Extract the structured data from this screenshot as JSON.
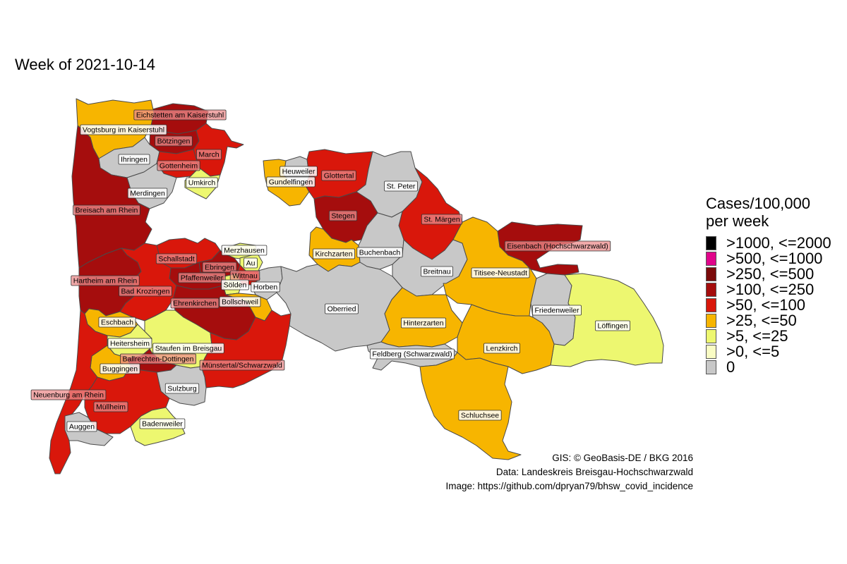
{
  "title": "Week of 2021-10-14",
  "legend": {
    "title_line1": "Cases/100,000",
    "title_line2": "per week",
    "items": [
      {
        "label": ">1000, <=2000",
        "color": "#000000"
      },
      {
        "label": ">500, <=1000",
        "color": "#e0058a"
      },
      {
        "label": ">250, <=500",
        "color": "#7a0a0a"
      },
      {
        "label": ">100, <=250",
        "color": "#a50d0d"
      },
      {
        "label": ">50, <=100",
        "color": "#d9170b"
      },
      {
        "label": ">25, <=50",
        "color": "#f7b500"
      },
      {
        "label": ">5, <=25",
        "color": "#edf770"
      },
      {
        "label": ">0, <=5",
        "color": "#f9fcc4"
      },
      {
        "label": "0",
        "color": "#c8c8c8"
      }
    ]
  },
  "credits": {
    "gis": "GIS: © GeoBasis-DE / BKG 2016",
    "data": "Data: Landeskreis Breisgau-Hochschwarzwald",
    "image": "Image: https://github.com/dpryan79/bhsw_covid_incidence"
  },
  "municipalities": [
    {
      "name": "Eichstetten am Kaiserstuhl",
      "class": ">100, <=250"
    },
    {
      "name": "Vogtsburg im Kaiserstuhl",
      "class": ">25, <=50"
    },
    {
      "name": "Bötzingen",
      "class": ">100, <=250"
    },
    {
      "name": "Ihringen",
      "class": "0"
    },
    {
      "name": "March",
      "class": ">50, <=100"
    },
    {
      "name": "Gottenheim",
      "class": ">50, <=100"
    },
    {
      "name": "Umkirch",
      "class": ">5, <=25"
    },
    {
      "name": "Merdingen",
      "class": "0"
    },
    {
      "name": "Breisach am Rhein",
      "class": ">100, <=250"
    },
    {
      "name": "Heuweiler",
      "class": "0"
    },
    {
      "name": "Gundelfingen",
      "class": ">25, <=50"
    },
    {
      "name": "Glottertal",
      "class": ">50, <=100"
    },
    {
      "name": "St. Peter",
      "class": "0"
    },
    {
      "name": "Stegen",
      "class": ">100, <=250"
    },
    {
      "name": "St. Märgen",
      "class": ">50, <=100"
    },
    {
      "name": "Eisenbach (Hochschwarzwald)",
      "class": ">100, <=250"
    },
    {
      "name": "Merzhausen",
      "class": ">5, <=25"
    },
    {
      "name": "Au",
      "class": ">5, <=25"
    },
    {
      "name": "Schallstadt",
      "class": ">50, <=100"
    },
    {
      "name": "Ebringen",
      "class": ">100, <=250"
    },
    {
      "name": "Wittnau",
      "class": ">50, <=100"
    },
    {
      "name": "Pfaffenweiler",
      "class": ">100, <=250"
    },
    {
      "name": "Sölden",
      "class": ">5, <=25"
    },
    {
      "name": "Horben",
      "class": "0"
    },
    {
      "name": "Kirchzarten",
      "class": ">25, <=50"
    },
    {
      "name": "Buchenbach",
      "class": "0"
    },
    {
      "name": "Breitnau",
      "class": "0"
    },
    {
      "name": "Titisee-Neustadt",
      "class": ">25, <=50"
    },
    {
      "name": "Hartheim am Rhein",
      "class": ">100, <=250"
    },
    {
      "name": "Bad Krozingen",
      "class": ">50, <=100"
    },
    {
      "name": "Ehrenkirchen",
      "class": ">100, <=250"
    },
    {
      "name": "Bollschweil",
      "class": ">25, <=50"
    },
    {
      "name": "Oberried",
      "class": "0"
    },
    {
      "name": "Friedenweiler",
      "class": "0"
    },
    {
      "name": "Eschbach",
      "class": ">25, <=50"
    },
    {
      "name": "Hinterzarten",
      "class": ">25, <=50"
    },
    {
      "name": "Löffingen",
      "class": ">5, <=25"
    },
    {
      "name": "Heitersheim",
      "class": ">5, <=25"
    },
    {
      "name": "Staufen im Breisgau",
      "class": ">5, <=25"
    },
    {
      "name": "Lenzkirch",
      "class": ">25, <=50"
    },
    {
      "name": "Feldberg (Schwarzwald)",
      "class": "0"
    },
    {
      "name": "Ballrechten-Dottingen",
      "class": ">100, <=250"
    },
    {
      "name": "Buggingen",
      "class": ">25, <=50"
    },
    {
      "name": "Münstertal/Schwarzwald",
      "class": ">50, <=100"
    },
    {
      "name": "Sulzburg",
      "class": "0"
    },
    {
      "name": "Neuenburg am Rhein",
      "class": ">50, <=100"
    },
    {
      "name": "Müllheim",
      "class": ">50, <=100"
    },
    {
      "name": "Schluchsee",
      "class": ">25, <=50"
    },
    {
      "name": "Auggen",
      "class": "0"
    },
    {
      "name": "Badenweiler",
      "class": ">5, <=25"
    }
  ]
}
